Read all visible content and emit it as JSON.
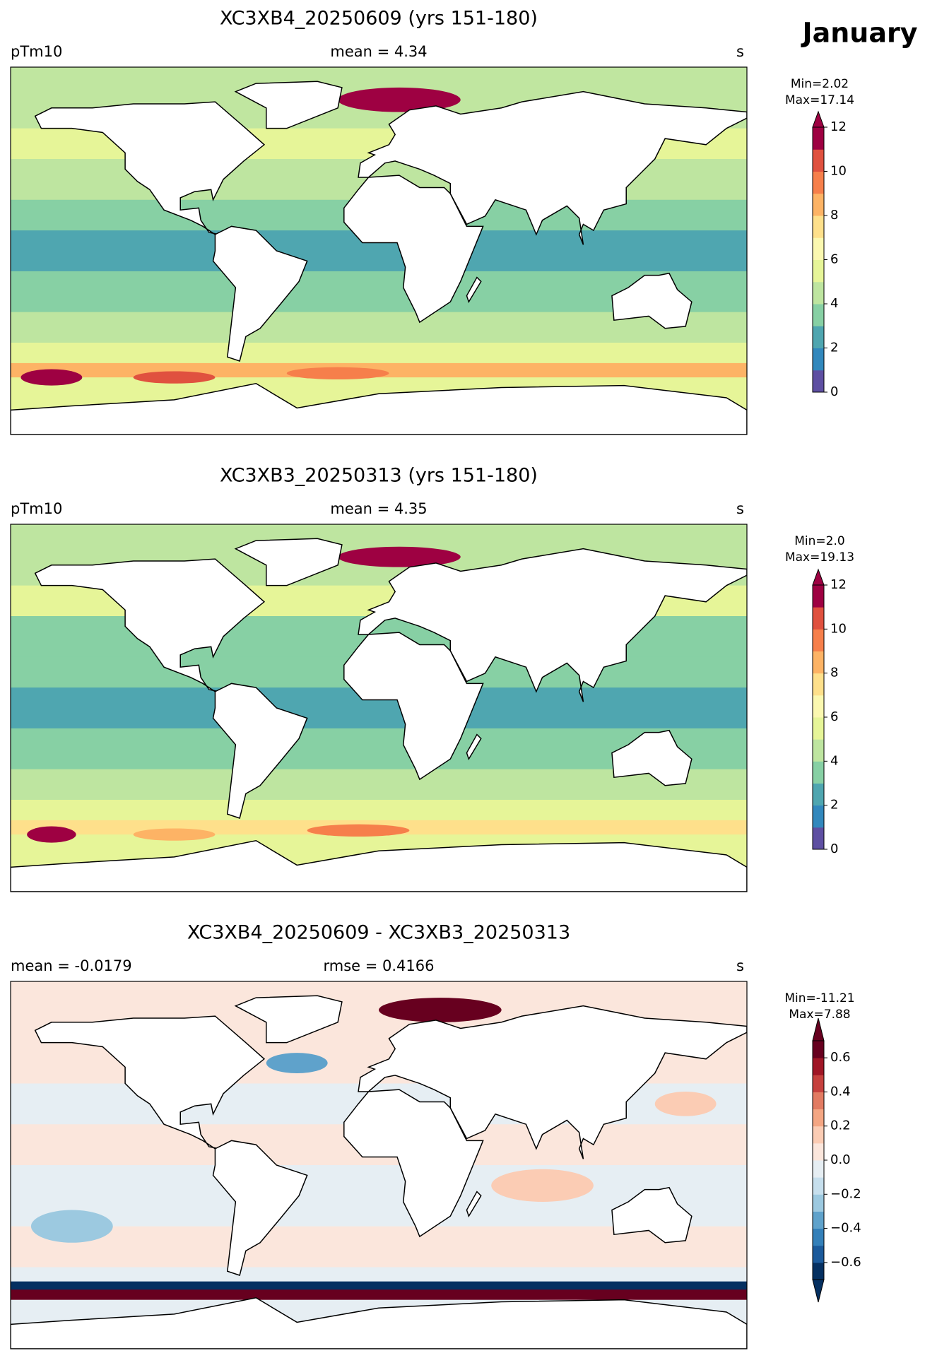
{
  "figure_title": "January",
  "panels": [
    {
      "title": "XC3XB4_20250609 (yrs 151-180)",
      "left_label": "pTm10",
      "center_label": "mean = 4.34",
      "right_label": "s",
      "colorbar": {
        "min_label": "Min=2.02",
        "max_label": "Max=17.14",
        "lim": [
          0,
          12
        ],
        "ticks": [
          0,
          2,
          4,
          6,
          8,
          10,
          12
        ],
        "extend": "max",
        "colors": [
          "#5e4fa2",
          "#3288bd",
          "#4fa6b0",
          "#87d0a4",
          "#bee5a0",
          "#e6f598",
          "#fbf8b0",
          "#fee08b",
          "#fdb365",
          "#f67f4b",
          "#e0513f",
          "#9e0142"
        ]
      }
    },
    {
      "title": "XC3XB3_20250313 (yrs 151-180)",
      "left_label": "pTm10",
      "center_label": "mean = 4.35",
      "right_label": "s",
      "colorbar": {
        "min_label": "Min=2.0",
        "max_label": "Max=19.13",
        "lim": [
          0,
          12
        ],
        "ticks": [
          0,
          2,
          4,
          6,
          8,
          10,
          12
        ],
        "extend": "max",
        "colors": [
          "#5e4fa2",
          "#3288bd",
          "#4fa6b0",
          "#87d0a4",
          "#bee5a0",
          "#e6f598",
          "#fbf8b0",
          "#fee08b",
          "#fdb365",
          "#f67f4b",
          "#e0513f",
          "#9e0142"
        ]
      }
    },
    {
      "title": "XC3XB4_20250609 - XC3XB3_20250313",
      "left_label": "mean = -0.0179",
      "center_label": "rmse = 0.4166",
      "right_label": "s",
      "colorbar": {
        "min_label": "Min=-11.21",
        "max_label": "Max=7.88",
        "lim": [
          -0.7,
          0.7
        ],
        "ticks": [
          {
            "value": -0.6,
            "label": "−0.6"
          },
          {
            "value": -0.4,
            "label": "−0.4"
          },
          {
            "value": -0.2,
            "label": "−0.2"
          },
          {
            "value": 0,
            "label": "0.0"
          },
          0.2,
          0.4,
          0.6
        ],
        "extend": "both",
        "colors": [
          "#053061",
          "#1b5a9b",
          "#3480b9",
          "#5fa2cb",
          "#9cc9e0",
          "#c6dfed",
          "#e6eef3",
          "#fbe6dc",
          "#fbccb4",
          "#f4a683",
          "#e27b62",
          "#c6413e",
          "#a01626",
          "#67001f"
        ]
      }
    }
  ]
}
